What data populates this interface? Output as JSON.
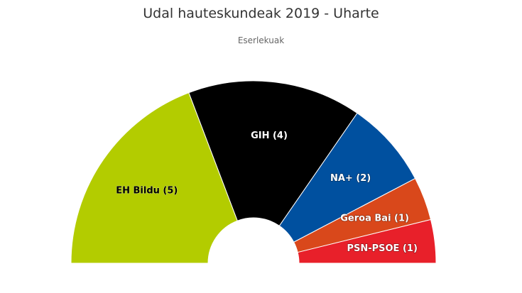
{
  "chart_data": {
    "type": "pie",
    "title": "Udal hauteskundeak 2019 - Uharte",
    "subtitle": "Eserlekuak",
    "categories": [
      "EH Bildu",
      "GIH",
      "NA+",
      "Geroa Bai",
      "PSN-PSOE"
    ],
    "values": [
      5,
      4,
      2,
      1,
      1
    ],
    "labels": [
      "EH Bildu (5)",
      "GIH (4)",
      "NA+ (2)",
      "Geroa Bai (1)",
      "PSN-PSOE (1)"
    ],
    "colors": [
      "#b3cc00",
      "#000000",
      "#00509f",
      "#d9481b",
      "#e8202a"
    ],
    "label_colors": [
      "#000000",
      "#ffffff",
      "#ffffff",
      "#ffffff",
      "#ffffff"
    ],
    "start_angle": -90,
    "end_angle": 90,
    "legend": "none"
  }
}
